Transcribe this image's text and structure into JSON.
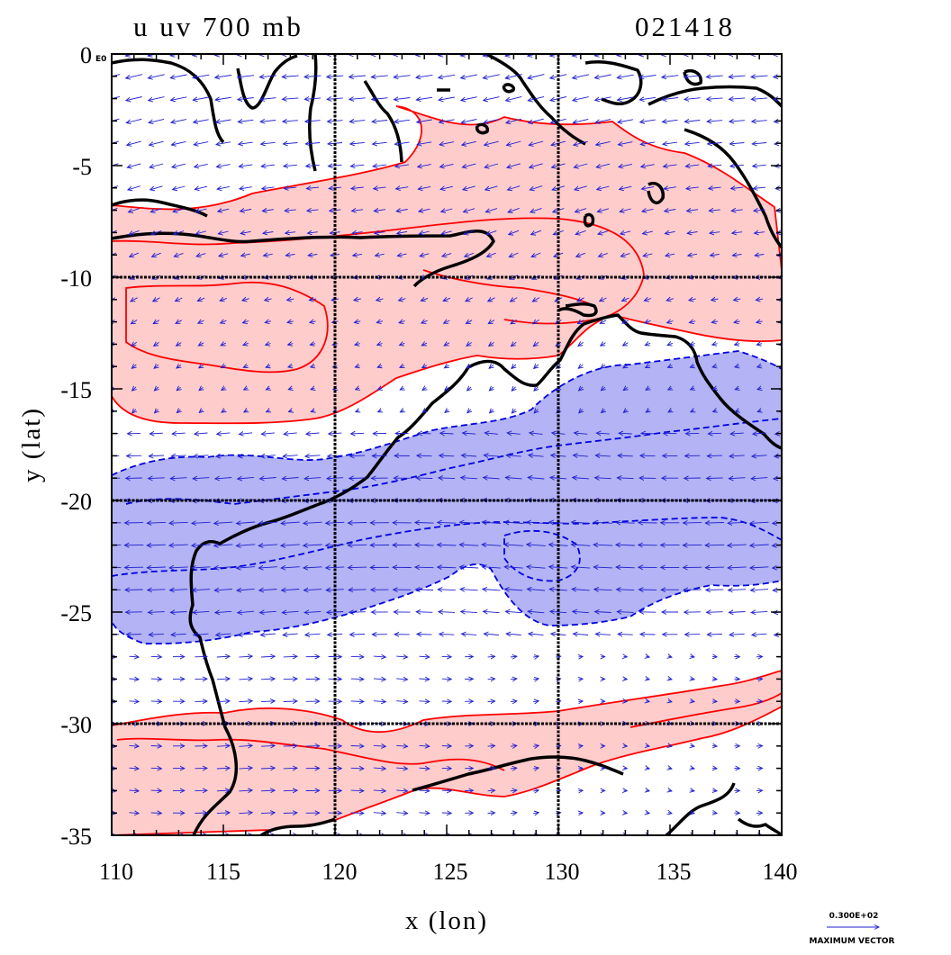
{
  "title": {
    "variables": "u uv 700 mb",
    "time": "021418"
  },
  "axes": {
    "xlabel": "x (lon)",
    "ylabel": "y (lat)",
    "xlim": [
      110,
      140
    ],
    "ylim": [
      -35,
      0
    ],
    "xticks": [
      "110",
      "115",
      "120",
      "125",
      "130",
      "135",
      "140"
    ],
    "yticks": [
      "0",
      "-5",
      "-10",
      "-15",
      "-20",
      "-25",
      "-30",
      "-35"
    ],
    "y_top_suffix": "E0",
    "gridlines_lon": [
      120,
      130
    ],
    "gridlines_lat": [
      -10,
      -20,
      -30
    ]
  },
  "reference_vector": {
    "magnitude": "0.300E+02",
    "label": "MAXIMUM VECTOR"
  },
  "colors": {
    "positive_fill": "#ffcccc",
    "positive_contour": "#ff0000",
    "negative_fill": "#b3b3f5",
    "negative_contour": "#0000e0",
    "coastline": "#000000",
    "vectors": "#2020d0"
  }
}
